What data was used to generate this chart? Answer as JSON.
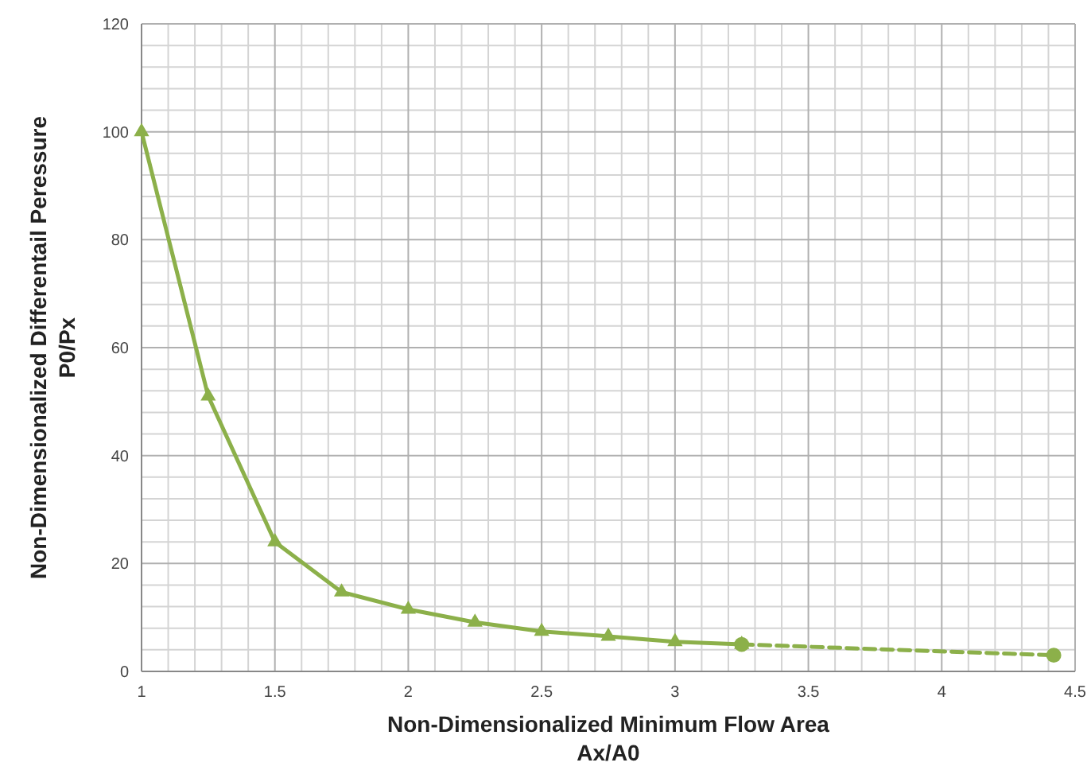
{
  "chart_data": {
    "type": "line",
    "xlabel": "Non-Dimensionalized Minimum Flow Area\nAx/A0",
    "ylabel": "Non-Dimensionalized Differentail Peressure\nP0/Px",
    "xlim": [
      1,
      4.5
    ],
    "xticks": [
      1,
      1.5,
      2,
      2.5,
      3,
      3.5,
      4,
      4.5
    ],
    "ylim": [
      0,
      120
    ],
    "yticks": [
      0,
      20,
      40,
      60,
      80,
      100,
      120
    ],
    "grid": true,
    "series": [
      {
        "color": "#8cb04a",
        "x": [
          1,
          1.25,
          1.5,
          1.75,
          2,
          2.25,
          2.5,
          2.75,
          3,
          3.25
        ],
        "values": [
          100,
          51,
          24,
          14.7,
          11.5,
          9.1,
          7.4,
          6.5,
          5.5,
          5
        ],
        "marker": "triangle",
        "line_style": "solid"
      },
      {
        "color": "#8cb04a",
        "x": [
          3.25,
          4.42
        ],
        "values": [
          5,
          3
        ],
        "marker": "circle",
        "line_style": "dashed"
      }
    ]
  }
}
